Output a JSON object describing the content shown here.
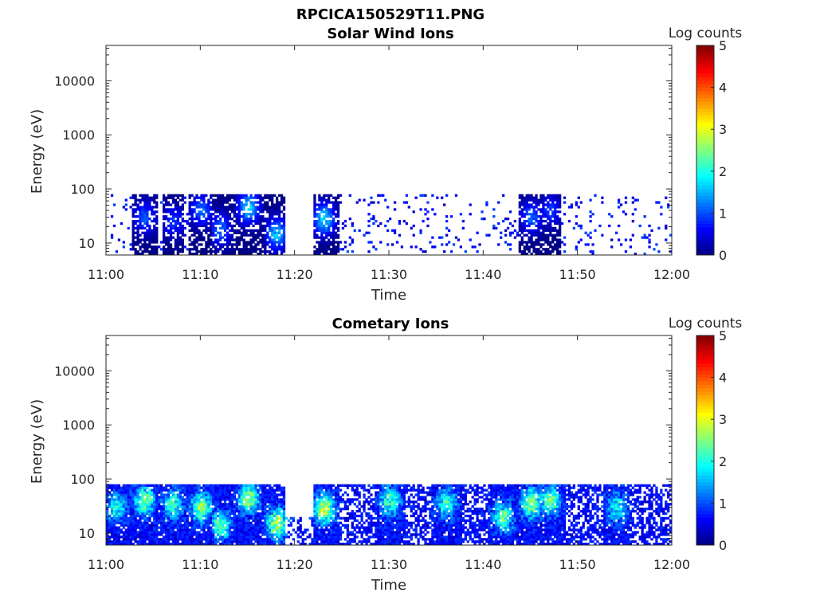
{
  "figure_title": "RPCICA150529T11.PNG",
  "colors": {
    "colormap": "jet",
    "axis": "#262626",
    "background": "#ffffff"
  },
  "chart_data": [
    {
      "type": "heatmap",
      "title": "Solar Wind Ions",
      "xlabel": "Time",
      "ylabel": "Energy (eV)",
      "x_tick_labels": [
        "11:00",
        "11:10",
        "11:20",
        "11:30",
        "11:40",
        "11:50",
        "12:00"
      ],
      "x_range": [
        "11:00",
        "12:00"
      ],
      "y_scale": "log",
      "y_tick_labels": [
        "10",
        "100",
        "1000",
        "10000"
      ],
      "y_range": [
        6,
        45000
      ],
      "data_energy_range_eV": [
        6,
        80
      ],
      "colorbar": {
        "label": "Log counts",
        "range": [
          0,
          5
        ],
        "tick_labels": [
          "0",
          "1",
          "2",
          "3",
          "4",
          "5"
        ]
      },
      "activity_bursts": [
        {
          "time": "11:04",
          "energy_eV": 30,
          "log_counts": 1.2
        },
        {
          "time": "11:07",
          "energy_eV": 25,
          "log_counts": 1.0
        },
        {
          "time": "11:10",
          "energy_eV": 40,
          "log_counts": 1.3
        },
        {
          "time": "11:12",
          "energy_eV": 18,
          "log_counts": 1.3
        },
        {
          "time": "11:15",
          "energy_eV": 45,
          "log_counts": 1.9
        },
        {
          "time": "11:18",
          "energy_eV": 15,
          "log_counts": 1.8
        },
        {
          "time": "11:23",
          "energy_eV": 28,
          "log_counts": 2.0
        },
        {
          "time": "11:45",
          "energy_eV": 30,
          "log_counts": 1.3
        },
        {
          "time": "11:47",
          "energy_eV": 40,
          "log_counts": 1.0
        }
      ],
      "gaps": [
        [
          "11:19",
          "11:22"
        ]
      ]
    },
    {
      "type": "heatmap",
      "title": "Cometary Ions",
      "xlabel": "Time",
      "ylabel": "Energy (eV)",
      "x_tick_labels": [
        "11:00",
        "11:10",
        "11:20",
        "11:30",
        "11:40",
        "11:50",
        "12:00"
      ],
      "x_range": [
        "11:00",
        "12:00"
      ],
      "y_scale": "log",
      "y_tick_labels": [
        "10",
        "100",
        "1000",
        "10000"
      ],
      "y_range": [
        6,
        45000
      ],
      "data_energy_range_eV": [
        6,
        80
      ],
      "colorbar": {
        "label": "Log counts",
        "range": [
          0,
          5
        ],
        "tick_labels": [
          "0",
          "1",
          "2",
          "3",
          "4",
          "5"
        ]
      },
      "activity_bursts": [
        {
          "time": "11:01",
          "energy_eV": 30,
          "log_counts": 1.7
        },
        {
          "time": "11:04",
          "energy_eV": 40,
          "log_counts": 2.3
        },
        {
          "time": "11:07",
          "energy_eV": 35,
          "log_counts": 2.0
        },
        {
          "time": "11:10",
          "energy_eV": 30,
          "log_counts": 2.4
        },
        {
          "time": "11:12",
          "energy_eV": 14,
          "log_counts": 2.2
        },
        {
          "time": "11:15",
          "energy_eV": 45,
          "log_counts": 2.6
        },
        {
          "time": "11:18",
          "energy_eV": 15,
          "log_counts": 2.7
        },
        {
          "time": "11:23",
          "energy_eV": 28,
          "log_counts": 2.9
        },
        {
          "time": "11:30",
          "energy_eV": 40,
          "log_counts": 2.1
        },
        {
          "time": "11:36",
          "energy_eV": 35,
          "log_counts": 1.9
        },
        {
          "time": "11:42",
          "energy_eV": 20,
          "log_counts": 2.2
        },
        {
          "time": "11:45",
          "energy_eV": 35,
          "log_counts": 2.5
        },
        {
          "time": "11:47",
          "energy_eV": 40,
          "log_counts": 2.3
        },
        {
          "time": "11:54",
          "energy_eV": 30,
          "log_counts": 1.7
        }
      ],
      "gaps": [
        [
          "11:19",
          "11:22"
        ]
      ]
    }
  ]
}
